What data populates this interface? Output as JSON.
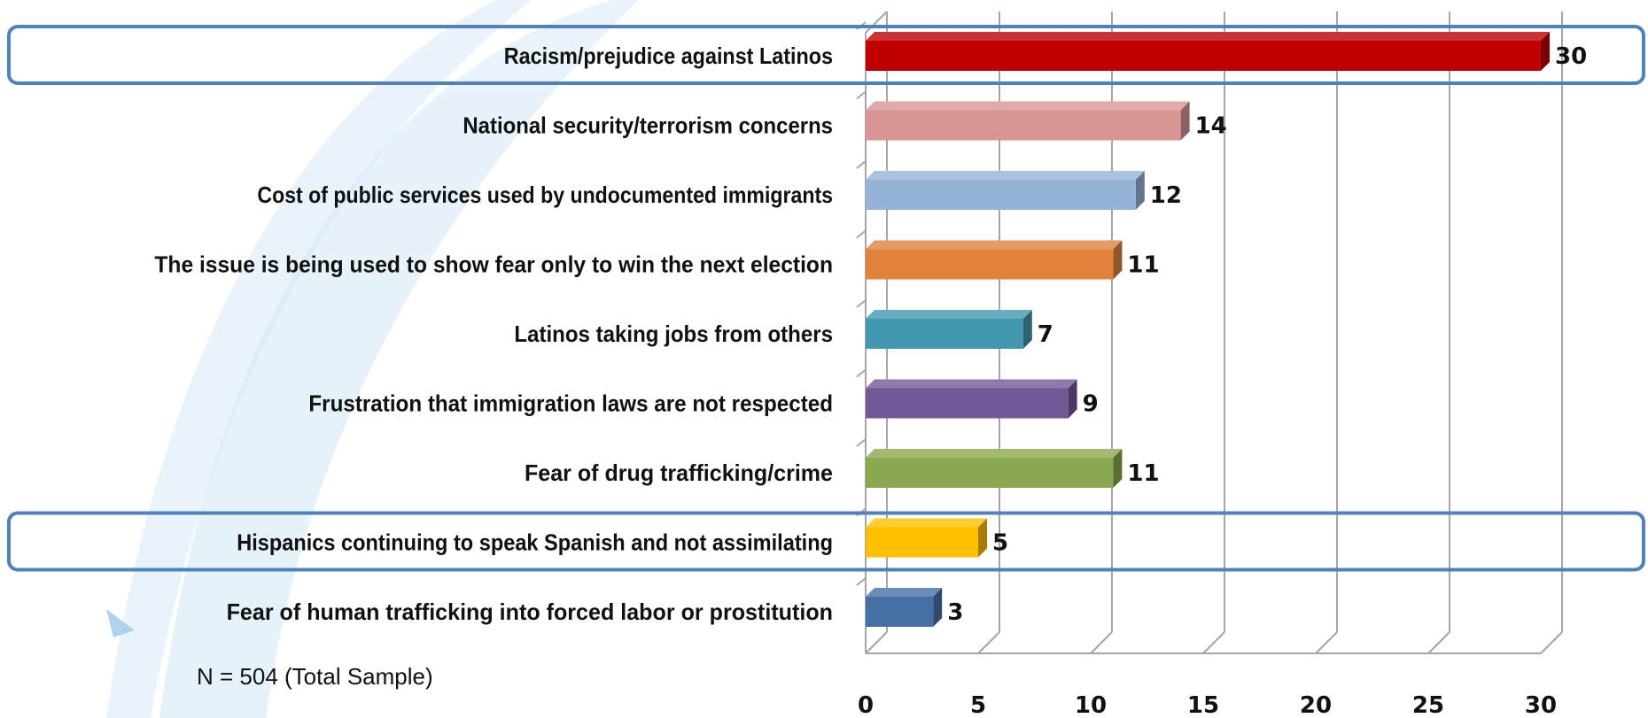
{
  "chart_data": {
    "type": "bar",
    "orientation": "horizontal",
    "categories": [
      "Racism/prejudice against Latinos",
      "National security/terrorism concerns",
      "Cost of public services  used by undocumented immigrants",
      "The issue is being used to show fear only to win the next election",
      "Latinos taking jobs from others",
      "Frustration that immigration laws are not respected",
      "Fear of drug trafficking/crime",
      "Hispanics continuing to speak Spanish and not assimilating",
      "Fear of human trafficking into forced labor or prostitution"
    ],
    "values": [
      30,
      14,
      12,
      11,
      7,
      9,
      11,
      5,
      3
    ],
    "colors": [
      "#c00000",
      "#d99594",
      "#95b3d7",
      "#e0823c",
      "#4299af",
      "#735898",
      "#8aa84f",
      "#ffc000",
      "#4570a6"
    ],
    "highlighted": [
      "Racism/prejudice against Latinos",
      "Hispanics continuing to speak Spanish and not assimilating"
    ],
    "highlight_color": "#4f81bd",
    "x_ticks": [
      0,
      5,
      10,
      15,
      20,
      25,
      30
    ],
    "xlim": [
      0,
      30
    ],
    "grid": true,
    "note": "N = 504 (Total Sample)"
  }
}
